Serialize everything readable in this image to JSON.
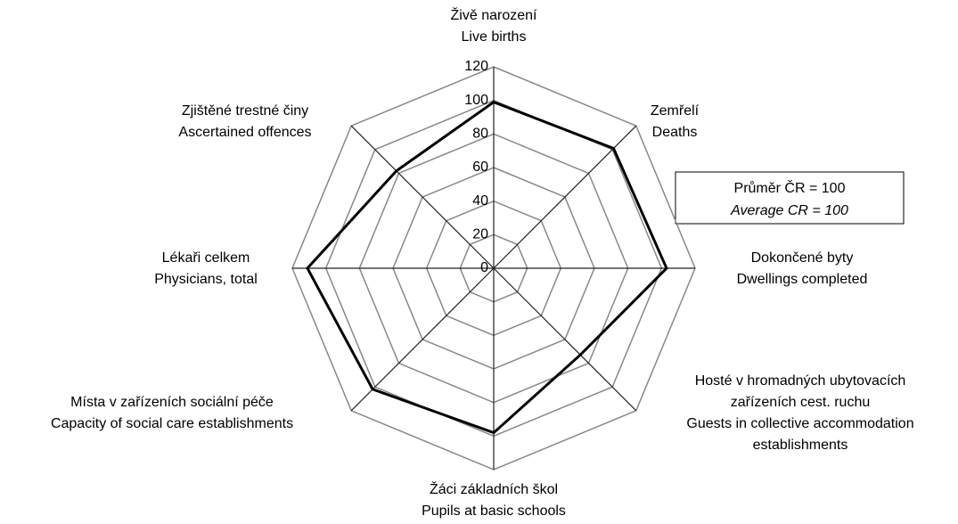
{
  "chart_data": {
    "type": "radar",
    "categories": [
      [
        "Živě narození",
        "Live births"
      ],
      [
        "Zemřelí",
        "Deaths"
      ],
      [
        "Dokončené byty",
        "Dwellings completed"
      ],
      [
        "Hosté v hromadných ubytovacích",
        "zařízeních cest. ruchu",
        "Guests in collective accommodation",
        "establishments"
      ],
      [
        "Žáci základních škol",
        "Pupils at basic schools"
      ],
      [
        "Místa v zařízeních sociální péče",
        "Capacity of social care establishments"
      ],
      [
        "Lékaři celkem",
        "Physicians, total"
      ],
      [
        "Zjištěné trestné činy",
        "Ascertained offences"
      ]
    ],
    "values": [
      99,
      101,
      103,
      73,
      98,
      102,
      111,
      82
    ],
    "color": "#000000",
    "ylim": [
      0,
      120
    ],
    "yticks": [
      0,
      20,
      40,
      60,
      80,
      100,
      120
    ],
    "grid": true,
    "annotation": [
      "Průměr  ČR = 100",
      "Average CR = 100"
    ]
  }
}
